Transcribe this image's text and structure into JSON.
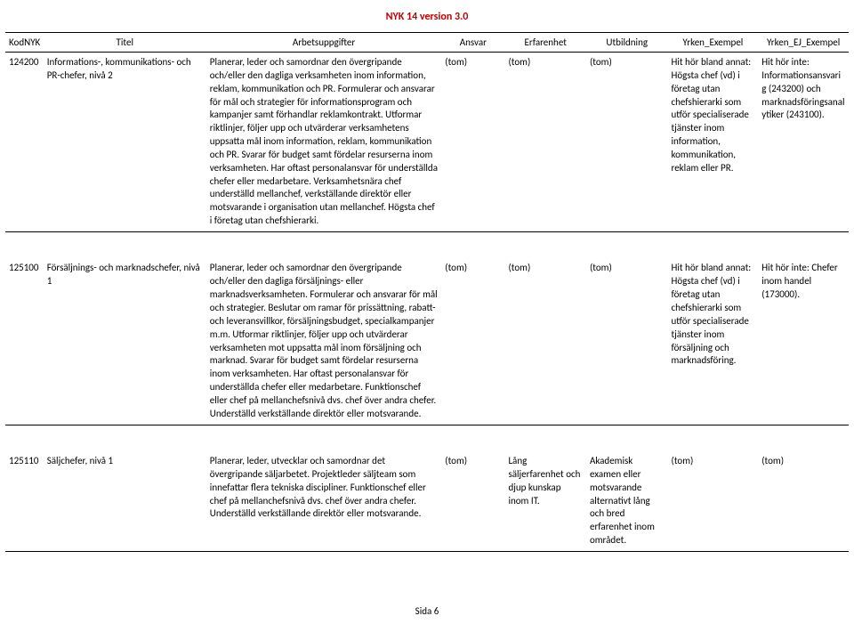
{
  "doc_title": "NYK 14 version 3.0",
  "footer": "Sida 6",
  "columns": {
    "kod": "KodNYK",
    "titel": "Titel",
    "arb": "Arbetsuppgifter",
    "ansvar": "Ansvar",
    "erf": "Erfarenhet",
    "utb": "Utbildning",
    "yex": "Yrken_Exempel",
    "yejex": "Yrken_EJ_Exempel"
  },
  "rows": [
    {
      "kod": "124200",
      "titel": "Informations-, kommunikations- och PR-chefer, nivå 2",
      "arb": "Planerar, leder och samordnar den övergripande och/eller den dagliga verksamheten inom information, reklam, kommunikation och PR. Formulerar och ansvarar för mål och strategier för informationsprogram och kampanjer samt förhandlar reklamkontrakt. Utformar riktlinjer, följer upp och utvärderar verksamhetens uppsatta mål inom information, reklam, kommunikation och PR. Svarar för budget samt fördelar resurserna inom verksamheten. Har oftast personalansvar för underställda chefer eller medarbetare. Verksamhetsnära chef underställd mellanchef, verkställande direktör eller motsvarande i organisation utan mellanchef. Högsta chef i företag utan chefshierarki.",
      "ansvar": "(tom)",
      "erf": "(tom)",
      "utb": "(tom)",
      "yex": "Hit hör bland annat: Högsta chef (vd) i företag utan chefshierarki som utför specialiserade tjänster inom information, kommunikation, reklam eller PR.",
      "yejex": "Hit hör inte: Informationsansvarig (243200) och marknadsföringsanalytiker (243100)."
    },
    {
      "kod": "125100",
      "titel": "Försäljnings- och marknadschefer, nivå 1",
      "arb": "Planerar, leder och samordnar den övergripande och/eller den dagliga försäljnings- eller marknadsverksamheten. Formulerar och ansvarar för mål och strategier. Beslutar om ramar för prissättning, rabatt- och leveransvillkor, försäljningsbudget, specialkampanjer m.m. Utformar riktlinjer, följer upp och utvärderar verksamheten mot uppsatta mål inom försäljning och marknad. Svarar för budget samt fördelar resurserna inom verksamheten. Har oftast personalansvar för underställda chefer eller medarbetare. Funktionschef eller chef på mellanchefsnivå dvs. chef över andra chefer. Underställd verkställande direktör eller motsvarande.",
      "ansvar": "(tom)",
      "erf": "(tom)",
      "utb": "(tom)",
      "yex": "Hit hör bland annat: Högsta chef (vd) i företag utan chefshierarki som utför specialiserade tjänster inom försäljning och marknadsföring.",
      "yejex": "Hit hör inte: Chefer inom handel (173000)."
    },
    {
      "kod": "125110",
      "titel": "Säljchefer, nivå 1",
      "arb": "Planerar, leder, utvecklar och samordnar det övergripande säljarbetet. Projektleder säljteam som innefattar flera tekniska discipliner. Funktionschef eller chef på mellanchefsnivå dvs. chef över andra chefer. Underställd verkställande direktör eller motsvarande.",
      "ansvar": "(tom)",
      "erf": "Lång säljerfarenhet och djup kunskap inom IT.",
      "utb": "Akademisk examen eller motsvarande alternativt lång och bred erfarenhet inom området.",
      "yex": "(tom)",
      "yejex": "(tom)"
    }
  ]
}
